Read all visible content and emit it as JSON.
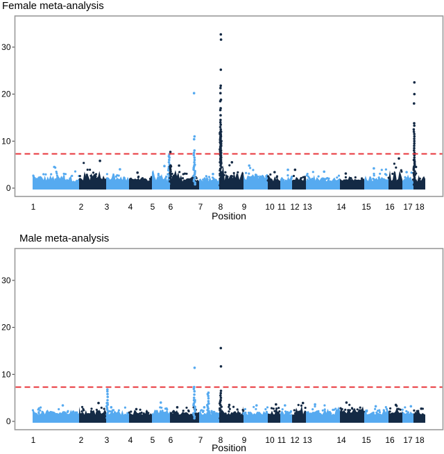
{
  "chart_data": [
    {
      "type": "scatter",
      "subtype": "manhattan",
      "title": "Female meta-analysis",
      "xlabel": "Position",
      "ylabel": "",
      "ylim": [
        -1.8,
        35.5
      ],
      "yticks": [
        0,
        10,
        20,
        30
      ],
      "threshold": 7.3,
      "chromosomes": [
        "1",
        "2",
        "3",
        "4",
        "5",
        "6",
        "7",
        "8",
        "9",
        "10",
        "11",
        "12",
        "13",
        "14",
        "15",
        "16",
        "17",
        "18"
      ],
      "chromosome_baseline_max": [
        4.5,
        5.8,
        4.0,
        3.3,
        4.7,
        4.8,
        3.0,
        5.5,
        4.8,
        3.4,
        3.9,
        3.9,
        3.5,
        3.1,
        4.2,
        6.3,
        3.4,
        4.5
      ],
      "peaks": [
        {
          "chromosome": "5",
          "values": [
            7.2,
            6.8,
            6.5,
            6.0,
            5.5,
            5.0,
            4.5
          ]
        },
        {
          "chromosome": "6",
          "values": [
            7.7,
            4.8,
            4.6
          ]
        },
        {
          "chromosome": "7",
          "values": [
            20.2,
            11.0,
            10.4,
            8.0,
            7.5,
            7.0,
            6.5,
            6.0,
            5.5,
            5.0
          ]
        },
        {
          "chromosome": "8",
          "values": [
            32.7,
            31.6,
            25.2,
            21.8,
            21.3,
            20.2,
            18.8,
            18.5,
            17.0,
            16.6,
            15.5,
            14.5,
            14.0,
            13.5,
            13.0,
            12.5,
            12.0,
            11.5,
            11.0,
            10.5,
            10.0,
            9.5,
            9.0,
            8.5,
            8.0,
            7.5,
            7.0,
            6.5,
            6.0,
            5.5
          ]
        },
        {
          "chromosome": "18",
          "values": [
            22.5,
            20.0,
            18.0,
            13.8,
            13.3,
            12.5,
            12.0,
            11.5,
            11.0,
            10.5,
            10.0,
            9.5,
            9.0,
            8.5,
            8.0,
            7.5,
            7.0,
            6.5,
            6.0
          ]
        }
      ]
    },
    {
      "type": "scatter",
      "subtype": "manhattan",
      "title": "Male meta-analysis",
      "xlabel": "Position",
      "ylabel": "",
      "ylim": [
        -1.8,
        37.5
      ],
      "yticks": [
        0,
        10,
        20,
        30
      ],
      "threshold": 7.3,
      "chromosomes": [
        "1",
        "2",
        "3",
        "4",
        "5",
        "6",
        "7",
        "8",
        "9",
        "10",
        "11",
        "12",
        "13",
        "14",
        "15",
        "16",
        "17",
        "18"
      ],
      "chromosome_baseline_max": [
        3.4,
        3.9,
        3.0,
        2.6,
        4.0,
        3.0,
        3.0,
        3.5,
        3.4,
        3.6,
        3.4,
        3.9,
        3.6,
        4.0,
        3.2,
        3.5,
        3.2,
        2.7
      ],
      "peaks": [
        {
          "chromosome": "3",
          "values": [
            6.8,
            6.4,
            5.8,
            5.2,
            4.5,
            3.9
          ]
        },
        {
          "chromosome": "7",
          "values": [
            11.4,
            7.3,
            6.9,
            6.4,
            5.7,
            5.0,
            4.5
          ]
        },
        {
          "chromosome": "7b",
          "values": [
            6.1,
            5.8,
            5.4,
            4.9,
            4.3,
            3.8
          ]
        },
        {
          "chromosome": "8",
          "values": [
            15.6,
            11.7,
            6.5,
            6.0,
            5.5,
            5.0,
            4.5
          ]
        }
      ]
    }
  ],
  "colors": {
    "odd_chromosome": "#56aaf0",
    "even_chromosome": "#142a45",
    "threshold_line": "#e8343a",
    "frame": "#9a9a9a"
  }
}
